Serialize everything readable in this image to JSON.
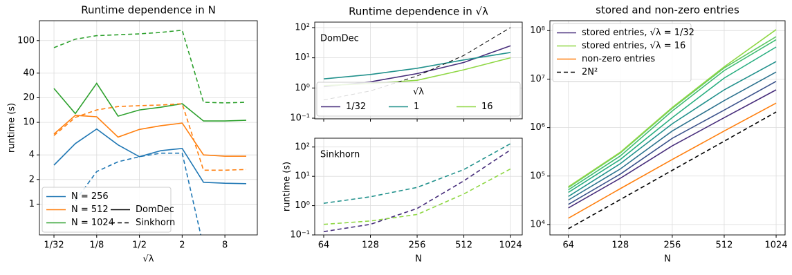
{
  "chart_data": [
    {
      "type": "line",
      "title": "Runtime dependence in N",
      "xlabel": "√λ",
      "ylabel": "runtime (s)",
      "xlog": true,
      "ylog": true,
      "grid": true,
      "legend_loc": "lower left",
      "legend_columns": 2,
      "xlim": [
        0.0195,
        22.9
      ],
      "ylim": [
        0.42,
        175
      ],
      "xticks": [
        {
          "value": 0.03125,
          "label": "1/32"
        },
        {
          "value": 0.125,
          "label": "1/8"
        },
        {
          "value": 0.5,
          "label": "1/2"
        },
        2,
        8
      ],
      "yticks": [
        1,
        2,
        4,
        10,
        20,
        40,
        100
      ],
      "x": [
        0.03125,
        0.0625,
        0.125,
        0.25,
        0.5,
        1,
        2,
        4,
        8,
        16
      ],
      "series": [
        {
          "name": "N = 256",
          "color": "#1f77b4",
          "dash": false,
          "values": [
            3.0,
            5.5,
            8.3,
            5.3,
            3.8,
            4.5,
            4.8,
            1.85,
            1.8,
            1.78
          ]
        },
        {
          "name": "N = 512",
          "color": "#ff7f0e",
          "dash": false,
          "values": [
            7.2,
            12.2,
            11.7,
            6.6,
            8.2,
            9.1,
            9.8,
            4.0,
            3.85,
            3.85
          ]
        },
        {
          "name": "N = 1024",
          "color": "#2ca02c",
          "dash": false,
          "values": [
            26,
            12.8,
            30,
            11.9,
            14.2,
            15.3,
            16.9,
            10.4,
            10.4,
            10.6
          ]
        },
        {
          "color": "#1f77b4",
          "dash": true,
          "values": [
            null,
            1.1,
            2.5,
            3.3,
            3.8,
            4.2,
            4.2,
            0.3,
            null,
            null
          ]
        },
        {
          "color": "#ff7f0e",
          "dash": true,
          "values": [
            6.9,
            11.5,
            14.2,
            15.6,
            16,
            16.3,
            16.9,
            2.6,
            2.6,
            2.65
          ]
        },
        {
          "color": "#2ca02c",
          "dash": true,
          "values": [
            82,
            104,
            115,
            118,
            121,
            126,
            134,
            17.6,
            17.3,
            17.6
          ]
        }
      ],
      "legend_styles": [
        {
          "name": "DomDec",
          "dash": false
        },
        {
          "name": "Sinkhorn",
          "dash": true
        }
      ]
    },
    {
      "type": "line",
      "title": "Runtime dependence in √λ",
      "annotation": "DomDec",
      "xlog": true,
      "ylog": true,
      "grid": true,
      "legend_loc": "lower center",
      "legend_columns": 3,
      "legend_title": "√λ",
      "xticklabels": false,
      "xlim": [
        56,
        1218
      ],
      "ylim": [
        0.095,
        152
      ],
      "xticks": [
        64,
        128,
        256,
        512,
        1024
      ],
      "yticks": [
        {
          "value": 0.1,
          "label": "10⁻¹"
        },
        {
          "value": 1,
          "label": "10⁰"
        },
        {
          "value": 10,
          "label": "10¹"
        },
        {
          "value": 100,
          "label": "10²"
        }
      ],
      "x": [
        64,
        128,
        256,
        512,
        1024
      ],
      "series": [
        {
          "name": "1/32",
          "color": "#472d7b",
          "dash": false,
          "values": [
            1.1,
            1.6,
            3.0,
            7,
            25
          ]
        },
        {
          "name": "1",
          "color": "#21918c",
          "dash": false,
          "values": [
            2.0,
            2.8,
            4.5,
            8.5,
            15
          ]
        },
        {
          "name": "16",
          "color": "#8fd744",
          "dash": false,
          "values": [
            1.2,
            1.4,
            1.8,
            4.0,
            10
          ]
        },
        {
          "color": "#000000",
          "dash": true,
          "thin": true,
          "values": [
            0.4,
            0.8,
            2.5,
            12,
            100
          ]
        }
      ]
    },
    {
      "type": "line",
      "annotation": "Sinkhorn",
      "xlabel": "N",
      "ylabel": "runtime (s)",
      "xlog": true,
      "ylog": true,
      "grid": true,
      "xlim": [
        56,
        1218
      ],
      "ylim": [
        0.1,
        200
      ],
      "xticks": [
        64,
        128,
        256,
        512,
        1024
      ],
      "yticks": [
        {
          "value": 0.1,
          "label": "10⁻¹"
        },
        {
          "value": 1,
          "label": "10⁰"
        },
        {
          "value": 10,
          "label": "10¹"
        },
        {
          "value": 100,
          "label": "10²"
        }
      ],
      "x": [
        64,
        128,
        256,
        512,
        1024
      ],
      "series": [
        {
          "color": "#472d7b",
          "dash": true,
          "values": [
            0.13,
            0.23,
            0.8,
            7,
            80
          ]
        },
        {
          "color": "#21918c",
          "dash": true,
          "values": [
            1.2,
            2.0,
            4.2,
            17,
            130
          ]
        },
        {
          "color": "#8fd744",
          "dash": true,
          "values": [
            0.23,
            0.3,
            0.5,
            2.5,
            18
          ]
        }
      ]
    },
    {
      "type": "line",
      "title": "stored and non-zero entries",
      "xlabel": "N",
      "xlog": true,
      "ylog": true,
      "grid": true,
      "legend_loc": "upper left",
      "legend_columns": 1,
      "xlim": [
        50,
        1154
      ],
      "ylim": [
        6100,
        160000000
      ],
      "xticks": [
        64,
        128,
        256,
        512,
        1024
      ],
      "yticks": [
        {
          "value": 10000,
          "label": "10⁴"
        },
        {
          "value": 100000,
          "label": "10⁵"
        },
        {
          "value": 1000000,
          "label": "10⁶"
        },
        {
          "value": 10000000,
          "label": "10⁷"
        },
        {
          "value": 100000000,
          "label": "10⁸"
        }
      ],
      "x": [
        64,
        128,
        256,
        512,
        1024
      ],
      "series": [
        {
          "name": "stored entries, √λ = 1/32",
          "color": "#472d7b",
          "dash": false,
          "values": [
            22000,
            90000,
            420000,
            1600000,
            6000000
          ]
        },
        {
          "color": "#3b528b",
          "dash": false,
          "values": [
            26000,
            110000,
            600000,
            2300000,
            9000000
          ]
        },
        {
          "color": "#2c728e",
          "dash": false,
          "values": [
            32000,
            140000,
            850000,
            3600000,
            14000000
          ]
        },
        {
          "color": "#21918c",
          "dash": false,
          "values": [
            38000,
            180000,
            1200000,
            6000000,
            23000000
          ]
        },
        {
          "color": "#28ae80",
          "dash": false,
          "values": [
            46000,
            220000,
            1600000,
            10500000,
            46000000
          ]
        },
        {
          "color": "#3fbc73",
          "dash": false,
          "values": [
            52000,
            260000,
            2200000,
            15000000,
            65000000
          ]
        },
        {
          "color": "#5ec962",
          "dash": false,
          "values": [
            58000,
            300000,
            2500000,
            17000000,
            75000000
          ]
        },
        {
          "name": "stored entries, √λ = 16",
          "color": "#8fd744",
          "dash": false,
          "values": [
            60000,
            310000,
            2600000,
            18000000,
            105000000
          ]
        },
        {
          "name": "non-zero entries",
          "color": "#ff7f0e",
          "dash": false,
          "values": [
            13500,
            55000,
            220000,
            850000,
            3200000
          ]
        },
        {
          "name": "2N²",
          "color": "#000000",
          "dash": true,
          "values": [
            8192,
            32768,
            131072,
            524288,
            2097152
          ]
        }
      ]
    }
  ]
}
